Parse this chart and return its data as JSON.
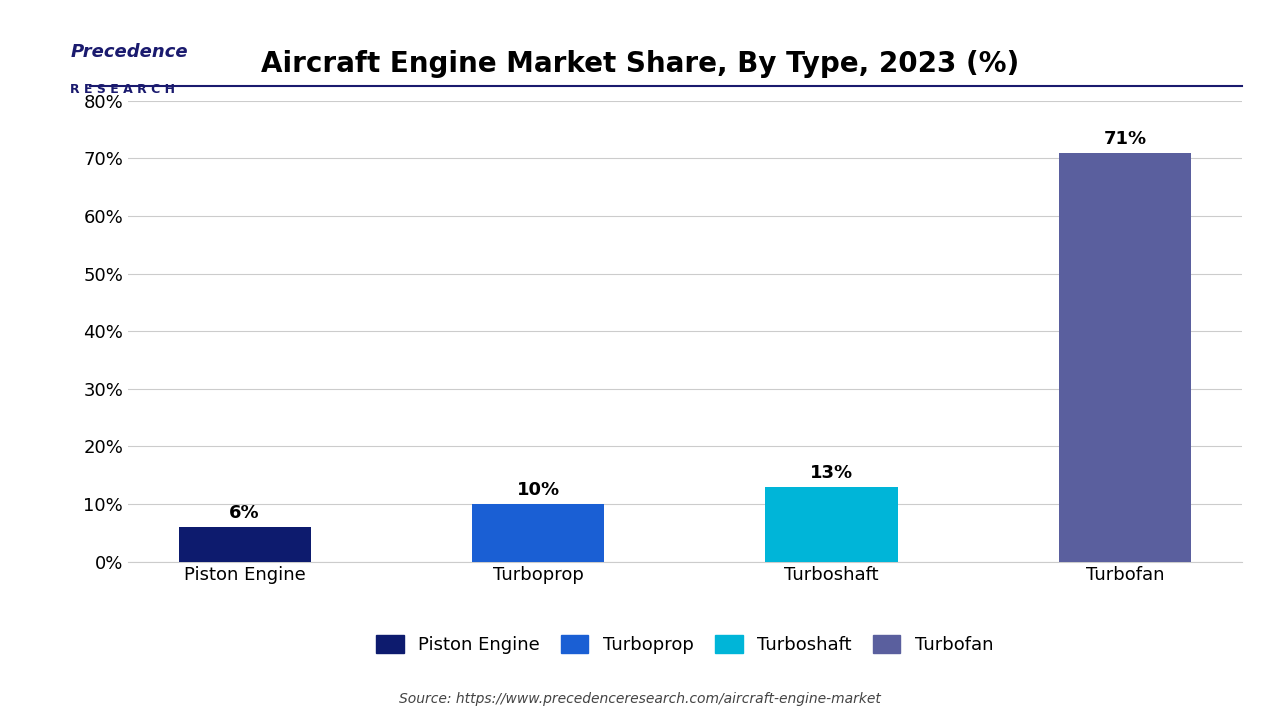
{
  "title": "Aircraft Engine Market Share, By Type, 2023 (%)",
  "categories": [
    "Piston Engine",
    "Turboprop",
    "Turboshaft",
    "Turbofan"
  ],
  "values": [
    6,
    10,
    13,
    71
  ],
  "bar_colors": [
    "#0d1b6e",
    "#1a5fd4",
    "#00b5d8",
    "#5a5f9e"
  ],
  "ylim": [
    0,
    80
  ],
  "yticks": [
    0,
    10,
    20,
    30,
    40,
    50,
    60,
    70,
    80
  ],
  "ytick_labels": [
    "0%",
    "10%",
    "20%",
    "30%",
    "40%",
    "50%",
    "60%",
    "70%",
    "80%"
  ],
  "bar_width": 0.45,
  "background_color": "#ffffff",
  "grid_color": "#cccccc",
  "title_fontsize": 20,
  "tick_fontsize": 13,
  "label_fontsize": 13,
  "value_fontsize": 13,
  "legend_labels": [
    "Piston Engine",
    "Turboprop",
    "Turboshaft",
    "Turbofan"
  ],
  "source_text": "Source: https://www.precedenceresearch.com/aircraft-engine-market",
  "separator_color": "#1a1a6e",
  "logo_text_line1": "Precedence",
  "logo_text_line2": "R E S E A R C H"
}
